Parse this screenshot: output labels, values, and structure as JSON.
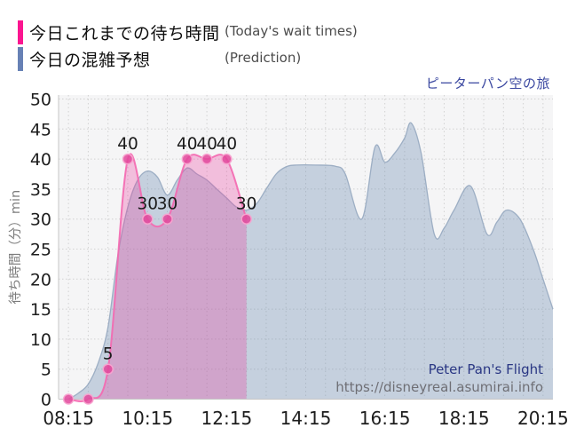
{
  "legend": {
    "actual": {
      "label": "今日これまでの待ち時間",
      "sublabel": "(Today's wait times)",
      "swatch_color": "#fb1590"
    },
    "prediction": {
      "label": "今日の混雑予想",
      "sublabel": "(Prediction)",
      "swatch_color": "#6781b5"
    }
  },
  "title": "ピーターパン空の旅",
  "footer": {
    "attraction": "Peter Pan's Flight",
    "url": "https://disneyreal.asumirai.info"
  },
  "chart_data": {
    "type": "area",
    "title": "ピーターパン空の旅",
    "xlabel": "",
    "ylabel": "待ち時間（分）min",
    "ylim": [
      0,
      50
    ],
    "ytick_step": 5,
    "yticks": [
      0,
      5,
      10,
      15,
      20,
      25,
      30,
      35,
      40,
      45,
      50
    ],
    "xticks": [
      "08:15",
      "10:15",
      "12:15",
      "14:15",
      "16:15",
      "18:15",
      "20:15"
    ],
    "xlim_hours": [
      8.0,
      20.5
    ],
    "grid": true,
    "legend_position": "top-left",
    "series": [
      {
        "name": "今日これまでの待ち時間",
        "name_en": "Today's wait times",
        "role": "actual",
        "line_color": "#f468b0",
        "fill_color": "rgba(236,64,160,0.30)",
        "marker_color": "rgba(226,70,155,0.85)",
        "marker_ring": "rgba(248,164,208,0.95)",
        "points": [
          {
            "time": "08:15",
            "value": 0
          },
          {
            "time": "08:45",
            "value": 0
          },
          {
            "time": "09:15",
            "value": 5
          },
          {
            "time": "09:45",
            "value": 40
          },
          {
            "time": "10:15",
            "value": 30
          },
          {
            "time": "10:45",
            "value": 30
          },
          {
            "time": "11:15",
            "value": 40
          },
          {
            "time": "11:45",
            "value": 40
          },
          {
            "time": "12:15",
            "value": 40
          },
          {
            "time": "12:45",
            "value": 30
          }
        ]
      },
      {
        "name": "今日の混雑予想",
        "name_en": "Prediction",
        "role": "prediction",
        "line_color": "rgba(150,168,192,0.9)",
        "fill_color": "rgba(106,139,177,0.34)",
        "points": [
          [
            "08:15",
            0
          ],
          [
            "08:30",
            1
          ],
          [
            "08:45",
            2.5
          ],
          [
            "09:00",
            6
          ],
          [
            "09:15",
            12
          ],
          [
            "09:30",
            24
          ],
          [
            "09:45",
            32
          ],
          [
            "10:00",
            36.5
          ],
          [
            "10:15",
            38
          ],
          [
            "10:30",
            37
          ],
          [
            "10:45",
            34
          ],
          [
            "11:00",
            36.5
          ],
          [
            "11:15",
            38.5
          ],
          [
            "11:30",
            37.5
          ],
          [
            "11:45",
            36.5
          ],
          [
            "12:00",
            35
          ],
          [
            "12:15",
            33.5
          ],
          [
            "12:30",
            32
          ],
          [
            "12:45",
            31.5
          ],
          [
            "13:00",
            32.5
          ],
          [
            "13:15",
            35
          ],
          [
            "13:30",
            37.5
          ],
          [
            "13:45",
            38.7
          ],
          [
            "14:00",
            39
          ],
          [
            "14:30",
            39
          ],
          [
            "15:00",
            38.8
          ],
          [
            "15:15",
            37.5
          ],
          [
            "15:40",
            30
          ],
          [
            "16:00",
            42
          ],
          [
            "16:15",
            39.5
          ],
          [
            "16:30",
            41
          ],
          [
            "16:45",
            43.5
          ],
          [
            "16:55",
            46
          ],
          [
            "17:10",
            41
          ],
          [
            "17:30",
            27.5
          ],
          [
            "17:45",
            28.5
          ],
          [
            "18:00",
            31.5
          ],
          [
            "18:25",
            35.5
          ],
          [
            "18:50",
            27.5
          ],
          [
            "19:05",
            29.5
          ],
          [
            "19:20",
            31.5
          ],
          [
            "19:40",
            30
          ],
          [
            "20:00",
            25
          ],
          [
            "20:15",
            20
          ],
          [
            "20:30",
            15
          ]
        ]
      }
    ]
  },
  "colors": {
    "plot_background": "#f5f5f6",
    "gridline": "#d2d2d2",
    "axis_line": "#c6c6c6",
    "tick_label": "#1d1d1d",
    "data_label": "#1a1a1a",
    "y_axis_title": "#7c7c7c",
    "title_text": "#3a47a0",
    "footer_attraction": "#2a3784",
    "footer_url": "#6f6f75"
  }
}
